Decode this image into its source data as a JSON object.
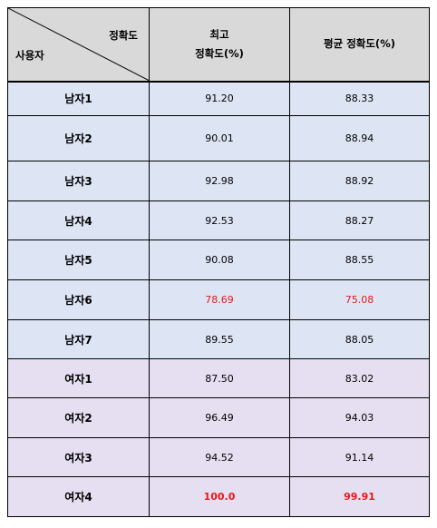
{
  "header": {
    "diag_top": "정확도",
    "diag_bottom": "사용자",
    "col2_line1": "최고",
    "col2_line2": "정확도(%)",
    "col3": "평균 정확도(%)"
  },
  "rows": [
    {
      "user": "남자1",
      "max": "91.20",
      "avg": "88.33",
      "group": "male",
      "highlight": false
    },
    {
      "user": "남자2",
      "max": "90.01",
      "avg": "88.94",
      "group": "male",
      "highlight": false
    },
    {
      "user": "남자3",
      "max": "92.98",
      "avg": "88.92",
      "group": "male",
      "highlight": false
    },
    {
      "user": "남자4",
      "max": "92.53",
      "avg": "88.27",
      "group": "male",
      "highlight": false
    },
    {
      "user": "남자5",
      "max": "90.08",
      "avg": "88.55",
      "group": "male",
      "highlight": false
    },
    {
      "user": "남자6",
      "max": "78.69",
      "avg": "75.08",
      "group": "male",
      "highlight": "low"
    },
    {
      "user": "남자7",
      "max": "89.55",
      "avg": "88.05",
      "group": "male",
      "highlight": false
    },
    {
      "user": "여자1",
      "max": "87.50",
      "avg": "83.02",
      "group": "female",
      "highlight": false
    },
    {
      "user": "여자2",
      "max": "96.49",
      "avg": "94.03",
      "group": "female",
      "highlight": false
    },
    {
      "user": "여자3",
      "max": "94.52",
      "avg": "91.14",
      "group": "female",
      "highlight": false
    },
    {
      "user": "여자4",
      "max": "100.0",
      "avg": "99.91",
      "group": "female",
      "highlight": "high"
    }
  ],
  "colors": {
    "header_bg": "#d9d9d9",
    "male_bg": "#dde5f5",
    "female_bg": "#e6dff1",
    "highlight_text": "#e31b1b"
  }
}
